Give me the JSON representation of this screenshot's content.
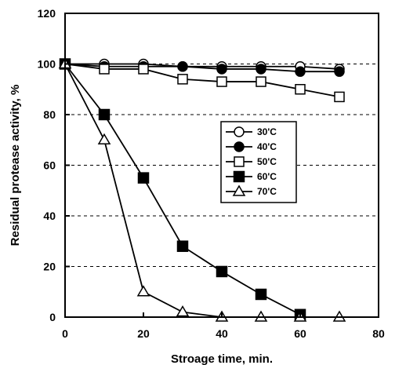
{
  "chart_data": {
    "type": "line",
    "xlabel": "Stroage time, min.",
    "ylabel": "Residual protease activity, %",
    "xlim": [
      0,
      80
    ],
    "ylim": [
      0,
      120
    ],
    "xticks": [
      0,
      20,
      40,
      60,
      80
    ],
    "yticks": [
      0,
      20,
      40,
      60,
      80,
      100,
      120
    ],
    "grid": "horizontal dashed",
    "legend_position": "center-right",
    "series": [
      {
        "name": "30'C",
        "marker": "circle-open",
        "points": [
          [
            0,
            100
          ],
          [
            10,
            100
          ],
          [
            20,
            100
          ],
          [
            30,
            99
          ],
          [
            40,
            99
          ],
          [
            50,
            99
          ],
          [
            60,
            99
          ],
          [
            70,
            98
          ]
        ]
      },
      {
        "name": "40'C",
        "marker": "circle-filled",
        "points": [
          [
            0,
            100
          ],
          [
            10,
            99
          ],
          [
            20,
            99
          ],
          [
            30,
            99
          ],
          [
            40,
            98
          ],
          [
            50,
            98
          ],
          [
            60,
            97
          ],
          [
            70,
            97
          ]
        ]
      },
      {
        "name": "50'C",
        "marker": "square-open",
        "points": [
          [
            0,
            100
          ],
          [
            10,
            98
          ],
          [
            20,
            98
          ],
          [
            30,
            94
          ],
          [
            40,
            93
          ],
          [
            50,
            93
          ],
          [
            60,
            90
          ],
          [
            70,
            87
          ]
        ]
      },
      {
        "name": "60'C",
        "marker": "square-filled",
        "points": [
          [
            0,
            100
          ],
          [
            10,
            80
          ],
          [
            20,
            55
          ],
          [
            30,
            28
          ],
          [
            40,
            18
          ],
          [
            50,
            9
          ],
          [
            60,
            1
          ]
        ]
      },
      {
        "name": "70'C",
        "marker": "triangle-open",
        "points": [
          [
            0,
            100
          ],
          [
            10,
            70
          ],
          [
            20,
            10
          ],
          [
            30,
            2
          ],
          [
            40,
            0
          ],
          [
            50,
            0
          ],
          [
            60,
            0
          ],
          [
            70,
            0
          ]
        ]
      }
    ]
  }
}
